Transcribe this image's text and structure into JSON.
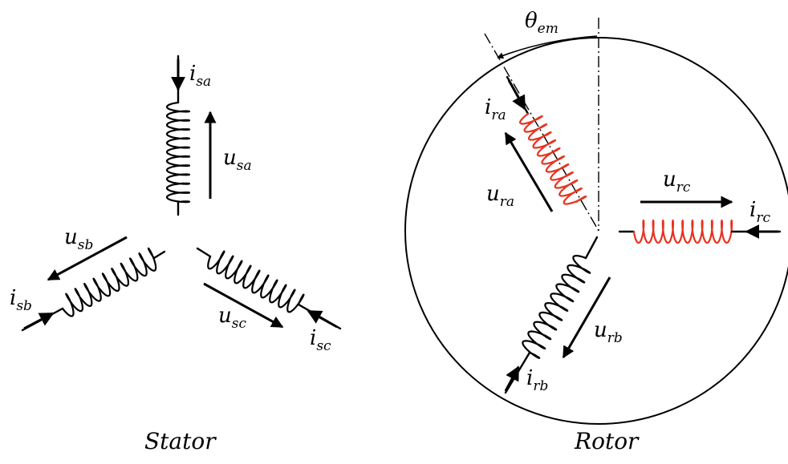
{
  "colors": {
    "stator_winding": "#000000",
    "rotor_winding_highlight": "#e8321f",
    "rotor_winding_plain": "#000000",
    "line": "#000000"
  },
  "stator": {
    "caption": "Stator",
    "phase_a": {
      "current": "i",
      "current_sub": "sa",
      "voltage": "u",
      "voltage_sub": "sa"
    },
    "phase_b": {
      "current": "i",
      "current_sub": "sb",
      "voltage": "u",
      "voltage_sub": "sb"
    },
    "phase_c": {
      "current": "i",
      "current_sub": "sc",
      "voltage": "u",
      "voltage_sub": "sc"
    }
  },
  "rotor": {
    "caption": "Rotor",
    "angle": {
      "symbol": "θ",
      "sub": "em"
    },
    "phase_a": {
      "current": "i",
      "current_sub": "ra",
      "voltage": "u",
      "voltage_sub": "ra"
    },
    "phase_b": {
      "current": "i",
      "current_sub": "rb",
      "voltage": "u",
      "voltage_sub": "rb"
    },
    "phase_c": {
      "current": "i",
      "current_sub": "rc",
      "voltage": "u",
      "voltage_sub": "rc"
    }
  }
}
